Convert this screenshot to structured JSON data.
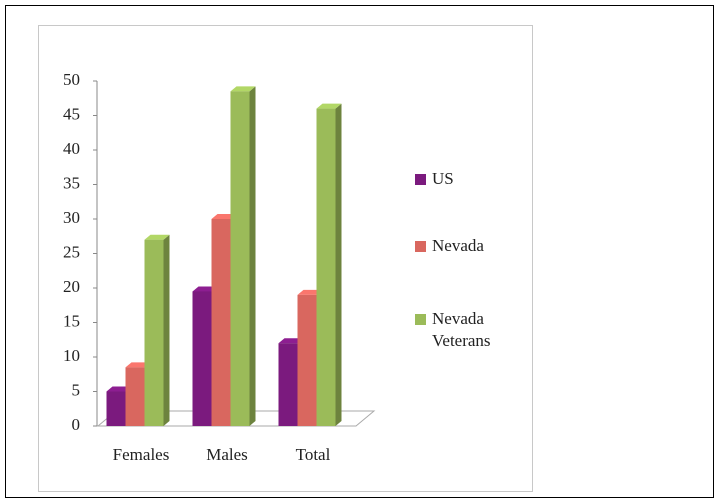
{
  "chart_data": {
    "type": "bar3d",
    "categories": [
      "Females",
      "Males",
      "Total"
    ],
    "series": [
      {
        "name": "US",
        "color": "#7b1a7e",
        "values": [
          5,
          19.5,
          12
        ]
      },
      {
        "name": "Nevada",
        "color": "#d9675f",
        "values": [
          8.5,
          30,
          19
        ]
      },
      {
        "name": "Nevada Veterans",
        "color": "#9bbb59",
        "values": [
          27,
          48.5,
          46
        ]
      }
    ],
    "ylim": [
      0,
      50
    ],
    "yticks": [
      0,
      5,
      10,
      15,
      20,
      25,
      30,
      35,
      40,
      45,
      50
    ],
    "legend": "right"
  }
}
